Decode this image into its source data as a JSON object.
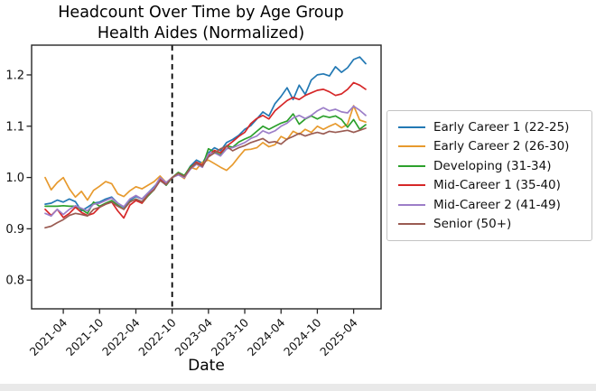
{
  "chart_data": {
    "type": "line",
    "title": "Headcount Over Time by Age Group",
    "subtitle": "Health Aides (Normalized)",
    "xlabel": "Date",
    "ylabel": "",
    "grid": false,
    "legend_position": "right",
    "ylim": [
      0.744,
      1.258
    ],
    "y_tick_labels": [
      "0.8",
      "0.9",
      "1.0",
      "1.1",
      "1.2"
    ],
    "x_tick_labels": [
      "2021-04",
      "2021-10",
      "2022-04",
      "2022-10",
      "2023-04",
      "2023-10",
      "2024-04",
      "2024-10",
      "2025-04"
    ],
    "vline_x": "2022-10",
    "vline_style": "black dashed vertical line (normalization point, all series = 1.0)",
    "x": [
      "2021-01",
      "2021-02",
      "2021-03",
      "2021-04",
      "2021-05",
      "2021-06",
      "2021-07",
      "2021-08",
      "2021-09",
      "2021-10",
      "2021-11",
      "2021-12",
      "2022-01",
      "2022-02",
      "2022-03",
      "2022-04",
      "2022-05",
      "2022-06",
      "2022-07",
      "2022-08",
      "2022-09",
      "2022-10",
      "2022-11",
      "2022-12",
      "2023-01",
      "2023-02",
      "2023-03",
      "2023-04",
      "2023-05",
      "2023-06",
      "2023-07",
      "2023-08",
      "2023-09",
      "2023-10",
      "2023-11",
      "2023-12",
      "2024-01",
      "2024-02",
      "2024-03",
      "2024-04",
      "2024-05",
      "2024-06",
      "2024-07",
      "2024-08",
      "2024-09",
      "2024-10",
      "2024-11",
      "2024-12",
      "2025-01",
      "2025-02",
      "2025-03",
      "2025-04",
      "2025-05",
      "2025-06"
    ],
    "series": [
      {
        "name": "Early Career 1 (22-25)",
        "color": "#2379b4",
        "values": [
          0.948,
          0.95,
          0.956,
          0.952,
          0.958,
          0.953,
          0.935,
          0.942,
          0.95,
          0.952,
          0.958,
          0.962,
          0.95,
          0.942,
          0.956,
          0.963,
          0.958,
          0.97,
          0.982,
          0.995,
          0.985,
          1.0,
          1.008,
          1.002,
          1.022,
          1.034,
          1.028,
          1.048,
          1.058,
          1.052,
          1.068,
          1.074,
          1.082,
          1.094,
          1.101,
          1.114,
          1.128,
          1.12,
          1.144,
          1.158,
          1.175,
          1.152,
          1.18,
          1.162,
          1.19,
          1.2,
          1.202,
          1.198,
          1.216,
          1.205,
          1.214,
          1.23,
          1.235,
          1.222
        ]
      },
      {
        "name": "Early Career 2 (26-30)",
        "color": "#e79a2e",
        "values": [
          1.0,
          0.976,
          0.99,
          1.0,
          0.978,
          0.962,
          0.973,
          0.956,
          0.975,
          0.983,
          0.992,
          0.988,
          0.968,
          0.963,
          0.974,
          0.982,
          0.978,
          0.985,
          0.992,
          1.003,
          0.99,
          1.0,
          1.006,
          0.998,
          1.02,
          1.016,
          1.03,
          1.034,
          1.027,
          1.02,
          1.014,
          1.025,
          1.04,
          1.054,
          1.055,
          1.058,
          1.068,
          1.06,
          1.064,
          1.08,
          1.074,
          1.09,
          1.084,
          1.094,
          1.088,
          1.1,
          1.094,
          1.1,
          1.105,
          1.097,
          1.104,
          1.14,
          1.112,
          1.108
        ]
      },
      {
        "name": "Developing (31-34)",
        "color": "#2ca02c",
        "values": [
          0.944,
          0.944,
          0.944,
          0.945,
          0.944,
          0.944,
          0.938,
          0.93,
          0.952,
          0.944,
          0.95,
          0.955,
          0.946,
          0.938,
          0.953,
          0.958,
          0.95,
          0.964,
          0.976,
          0.998,
          0.985,
          1.0,
          1.01,
          1.004,
          1.021,
          1.028,
          1.022,
          1.056,
          1.05,
          1.044,
          1.062,
          1.059,
          1.069,
          1.075,
          1.08,
          1.09,
          1.1,
          1.094,
          1.1,
          1.106,
          1.11,
          1.124,
          1.104,
          1.114,
          1.12,
          1.114,
          1.12,
          1.117,
          1.12,
          1.113,
          1.098,
          1.113,
          1.094,
          1.103
        ]
      },
      {
        "name": "Mid-Career 1 (35-40)",
        "color": "#d62728",
        "values": [
          0.938,
          0.926,
          0.938,
          0.922,
          0.93,
          0.942,
          0.932,
          0.926,
          0.93,
          0.942,
          0.948,
          0.952,
          0.935,
          0.921,
          0.946,
          0.955,
          0.95,
          0.966,
          0.978,
          0.996,
          0.988,
          1.0,
          1.007,
          1.0,
          1.018,
          1.03,
          1.024,
          1.043,
          1.053,
          1.048,
          1.061,
          1.07,
          1.08,
          1.088,
          1.105,
          1.115,
          1.121,
          1.114,
          1.13,
          1.14,
          1.15,
          1.156,
          1.152,
          1.16,
          1.165,
          1.17,
          1.172,
          1.167,
          1.16,
          1.163,
          1.172,
          1.185,
          1.18,
          1.172
        ]
      },
      {
        "name": "Mid-Career 2 (41-49)",
        "color": "#9c7ec8",
        "values": [
          0.93,
          0.925,
          0.938,
          0.928,
          0.938,
          0.945,
          0.94,
          0.935,
          0.948,
          0.95,
          0.955,
          0.96,
          0.95,
          0.943,
          0.958,
          0.965,
          0.958,
          0.97,
          0.98,
          1.0,
          0.99,
          1.0,
          1.005,
          1.0,
          1.016,
          1.026,
          1.02,
          1.046,
          1.048,
          1.042,
          1.056,
          1.058,
          1.063,
          1.068,
          1.076,
          1.081,
          1.091,
          1.086,
          1.091,
          1.1,
          1.106,
          1.116,
          1.121,
          1.115,
          1.121,
          1.13,
          1.136,
          1.13,
          1.133,
          1.128,
          1.126,
          1.139,
          1.131,
          1.121
        ]
      },
      {
        "name": "Senior (50+)",
        "color": "#9a5b52",
        "values": [
          0.902,
          0.905,
          0.912,
          0.918,
          0.926,
          0.93,
          0.928,
          0.925,
          0.938,
          0.942,
          0.948,
          0.952,
          0.944,
          0.938,
          0.952,
          0.958,
          0.953,
          0.966,
          0.976,
          0.994,
          0.986,
          1.0,
          1.008,
          1.002,
          1.018,
          1.028,
          1.022,
          1.04,
          1.048,
          1.056,
          1.061,
          1.052,
          1.058,
          1.062,
          1.068,
          1.072,
          1.076,
          1.068,
          1.07,
          1.065,
          1.075,
          1.08,
          1.086,
          1.081,
          1.085,
          1.088,
          1.085,
          1.09,
          1.088,
          1.09,
          1.092,
          1.088,
          1.092,
          1.096
        ]
      }
    ]
  }
}
